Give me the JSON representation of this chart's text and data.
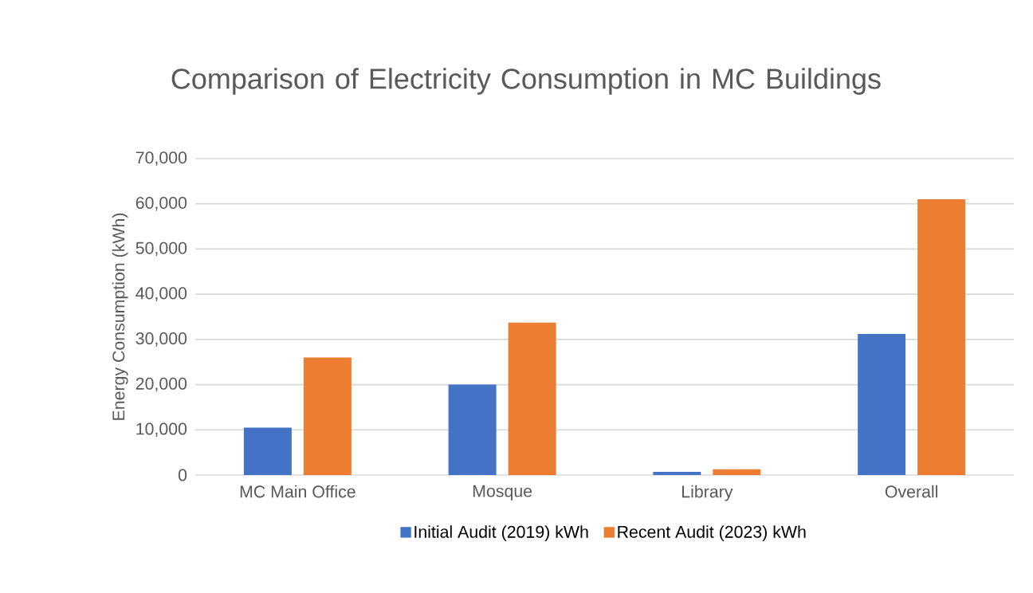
{
  "chart_data": {
    "type": "bar",
    "title": "Comparison of Electricity Consumption in MC Buildings",
    "ylabel": "Energy Consumption (kWh)",
    "categories": [
      "MC Main Office",
      "Mosque",
      "Library",
      "Overall"
    ],
    "series": [
      {
        "name": "Initial Audit (2019) kWh",
        "color": "#4472c4",
        "values": [
          10500,
          20000,
          700,
          31200
        ]
      },
      {
        "name": "Recent Audit (2023) kWh",
        "color": "#ed7d31",
        "values": [
          26000,
          33700,
          1300,
          61000
        ]
      }
    ],
    "ylim": [
      0,
      70000
    ],
    "yticks": [
      0,
      {
        "value": 10000,
        "label": "10,000"
      },
      {
        "value": 20000,
        "label": "20,000"
      },
      {
        "value": 30000,
        "label": "30,000"
      },
      {
        "value": 40000,
        "label": "40,000"
      },
      {
        "value": 50000,
        "label": "50,000"
      },
      {
        "value": 60000,
        "label": "60,000"
      },
      {
        "value": 70000,
        "label": "70,000"
      }
    ],
    "grid": "y",
    "legend": "bottom"
  }
}
